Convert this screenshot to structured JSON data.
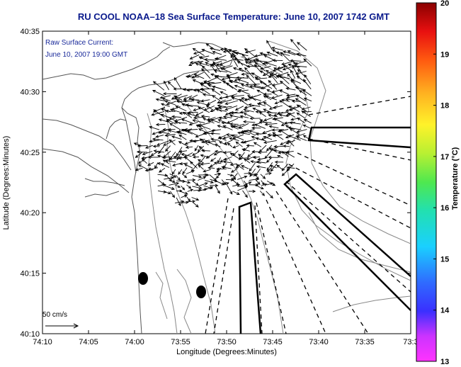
{
  "title": "RU COOL   NOAA–18  Sea Surface Temperature:  June 10, 2007 1742 GMT",
  "annotation": {
    "line1": "Raw Surface Current:",
    "line2": "June 10, 2007 19:00 GMT"
  },
  "scale_label": "50 cm/s",
  "axes": {
    "xlabel": "Longitude (Degrees:Minutes)",
    "ylabel": "Latitude (Degrees:Minutes)",
    "xticks": [
      "74:10",
      "74:05",
      "74:00",
      "73:55",
      "73:50",
      "73:45",
      "73:40",
      "73:35",
      "73:3"
    ],
    "yticks": [
      "40:35",
      "40:30",
      "40:25",
      "40:20",
      "40:15",
      "40:10"
    ]
  },
  "colorbar": {
    "label": "Temperature (°C)",
    "ticks": [
      "20",
      "19",
      "18",
      "17",
      "16",
      "15",
      "14",
      "13"
    ],
    "min": 13,
    "max": 20
  },
  "colors": {
    "title": "#0a1a8c",
    "annotation": "#1a2a9a",
    "coastline": "#555555",
    "bathymetry": "#888888",
    "vectors": "#000000"
  },
  "chart_data": {
    "type": "vector-field-map",
    "xlim_deg_min": [
      "74:10",
      "73:30"
    ],
    "ylim_deg_min": [
      "40:10",
      "40:35"
    ],
    "colorbar_range_c": [
      13,
      20
    ],
    "reference_vector_cm_s": 50
  }
}
